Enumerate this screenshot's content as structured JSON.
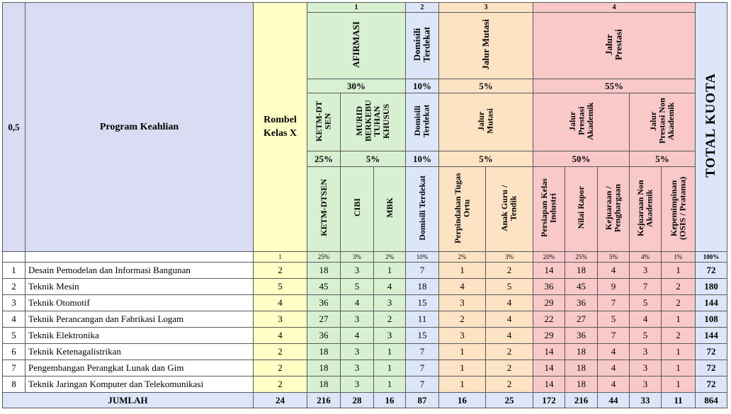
{
  "header": {
    "no_label": "0,5",
    "program_label": "Program Keahlian",
    "rombel_label": "Rombel Kelas X",
    "total_label": "TOTAL KUOTA",
    "group_numbers": [
      "1",
      "2",
      "3",
      "4"
    ],
    "groups": {
      "afirmasi": "AFIRMASI",
      "domisili": "Domisili Terdekat",
      "mutasi": "Jalur Mutasi",
      "prestasi": "Jalur Prestasi"
    },
    "group_pct": {
      "afirmasi": "30%",
      "domisili": "10%",
      "mutasi": "5%",
      "prestasi": "55%"
    },
    "sub": {
      "ketm": "KETM-DT SEN",
      "murid": "MURID BERKEBU TUHAN KHUSUS",
      "domisili": "Domisili Terdekat",
      "mutasi": "Jalur Mutasi",
      "akademik": "Jalur Prestasi Akademik",
      "non_akademik": "Jalur Prestasi Non Akademik"
    },
    "sub_pct": {
      "ketm": "25%",
      "murid": "5%",
      "domisili": "10%",
      "mutasi": "5%",
      "akademik": "50%",
      "non_akademik": "5%"
    },
    "columns": [
      "KETM-DTSEN",
      "CIBI",
      "MBK",
      "Domisili Terdekat",
      "Perpindahan Tugas Ortu",
      "Anak Guru / Tendik",
      "Persiapan Kelas Industri",
      "Nilai Rapor",
      "Kejuaraan / Penghargaan",
      "Kejuaraan Non Akademik",
      "Kepemimpinan (OSIS / Pratama)"
    ],
    "column_pct": [
      "1",
      "25%",
      "3%",
      "2%",
      "10%",
      "2%",
      "3%",
      "20%",
      "25%",
      "5%",
      "4%",
      "1%",
      "100%"
    ]
  },
  "rows": [
    {
      "no": "1",
      "program": "Desain Pemodelan dan Informasi Bangunan",
      "rombel": "2",
      "values": [
        "18",
        "3",
        "1",
        "7",
        "1",
        "2",
        "14",
        "18",
        "4",
        "3",
        "1"
      ],
      "total": "72"
    },
    {
      "no": "2",
      "program": "Teknik Mesin",
      "rombel": "5",
      "values": [
        "45",
        "5",
        "4",
        "18",
        "4",
        "5",
        "36",
        "45",
        "9",
        "7",
        "2"
      ],
      "total": "180"
    },
    {
      "no": "3",
      "program": "Teknik Otomotif",
      "rombel": "4",
      "values": [
        "36",
        "4",
        "3",
        "15",
        "3",
        "4",
        "29",
        "36",
        "7",
        "5",
        "2"
      ],
      "total": "144"
    },
    {
      "no": "4",
      "program": "Teknik Perancangan dan Fabrikasi Logam",
      "rombel": "3",
      "values": [
        "27",
        "3",
        "2",
        "11",
        "2",
        "4",
        "22",
        "27",
        "5",
        "4",
        "1"
      ],
      "total": "108"
    },
    {
      "no": "5",
      "program": "Teknik Elektronika",
      "rombel": "4",
      "values": [
        "36",
        "4",
        "3",
        "15",
        "3",
        "4",
        "29",
        "36",
        "7",
        "5",
        "2"
      ],
      "total": "144"
    },
    {
      "no": "6",
      "program": "Teknik Ketenagalistrikan",
      "rombel": "2",
      "values": [
        "18",
        "3",
        "1",
        "7",
        "1",
        "2",
        "14",
        "18",
        "4",
        "3",
        "1"
      ],
      "total": "72"
    },
    {
      "no": "7",
      "program": "Pengembangan Perangkat Lunak dan Gim",
      "rombel": "2",
      "values": [
        "18",
        "3",
        "1",
        "7",
        "1",
        "2",
        "14",
        "18",
        "4",
        "3",
        "1"
      ],
      "total": "72"
    },
    {
      "no": "8",
      "program": "Teknik Jaringan Komputer  dan Telekomunikasi",
      "rombel": "2",
      "values": [
        "18",
        "3",
        "1",
        "7",
        "1",
        "2",
        "14",
        "18",
        "4",
        "3",
        "1"
      ],
      "total": "72"
    }
  ],
  "footer": {
    "label": "JUMLAH",
    "rombel": "24",
    "values": [
      "216",
      "28",
      "16",
      "87",
      "16",
      "25",
      "172",
      "216",
      "44",
      "33",
      "11"
    ],
    "total": "864"
  },
  "colors": {
    "blue": "#d9dcf3",
    "yellow": "#ffffc6",
    "green": "#d7f0d2",
    "light_blue": "#dde6f8",
    "orange": "#fde3c4",
    "pink": "#f9c9ca"
  }
}
